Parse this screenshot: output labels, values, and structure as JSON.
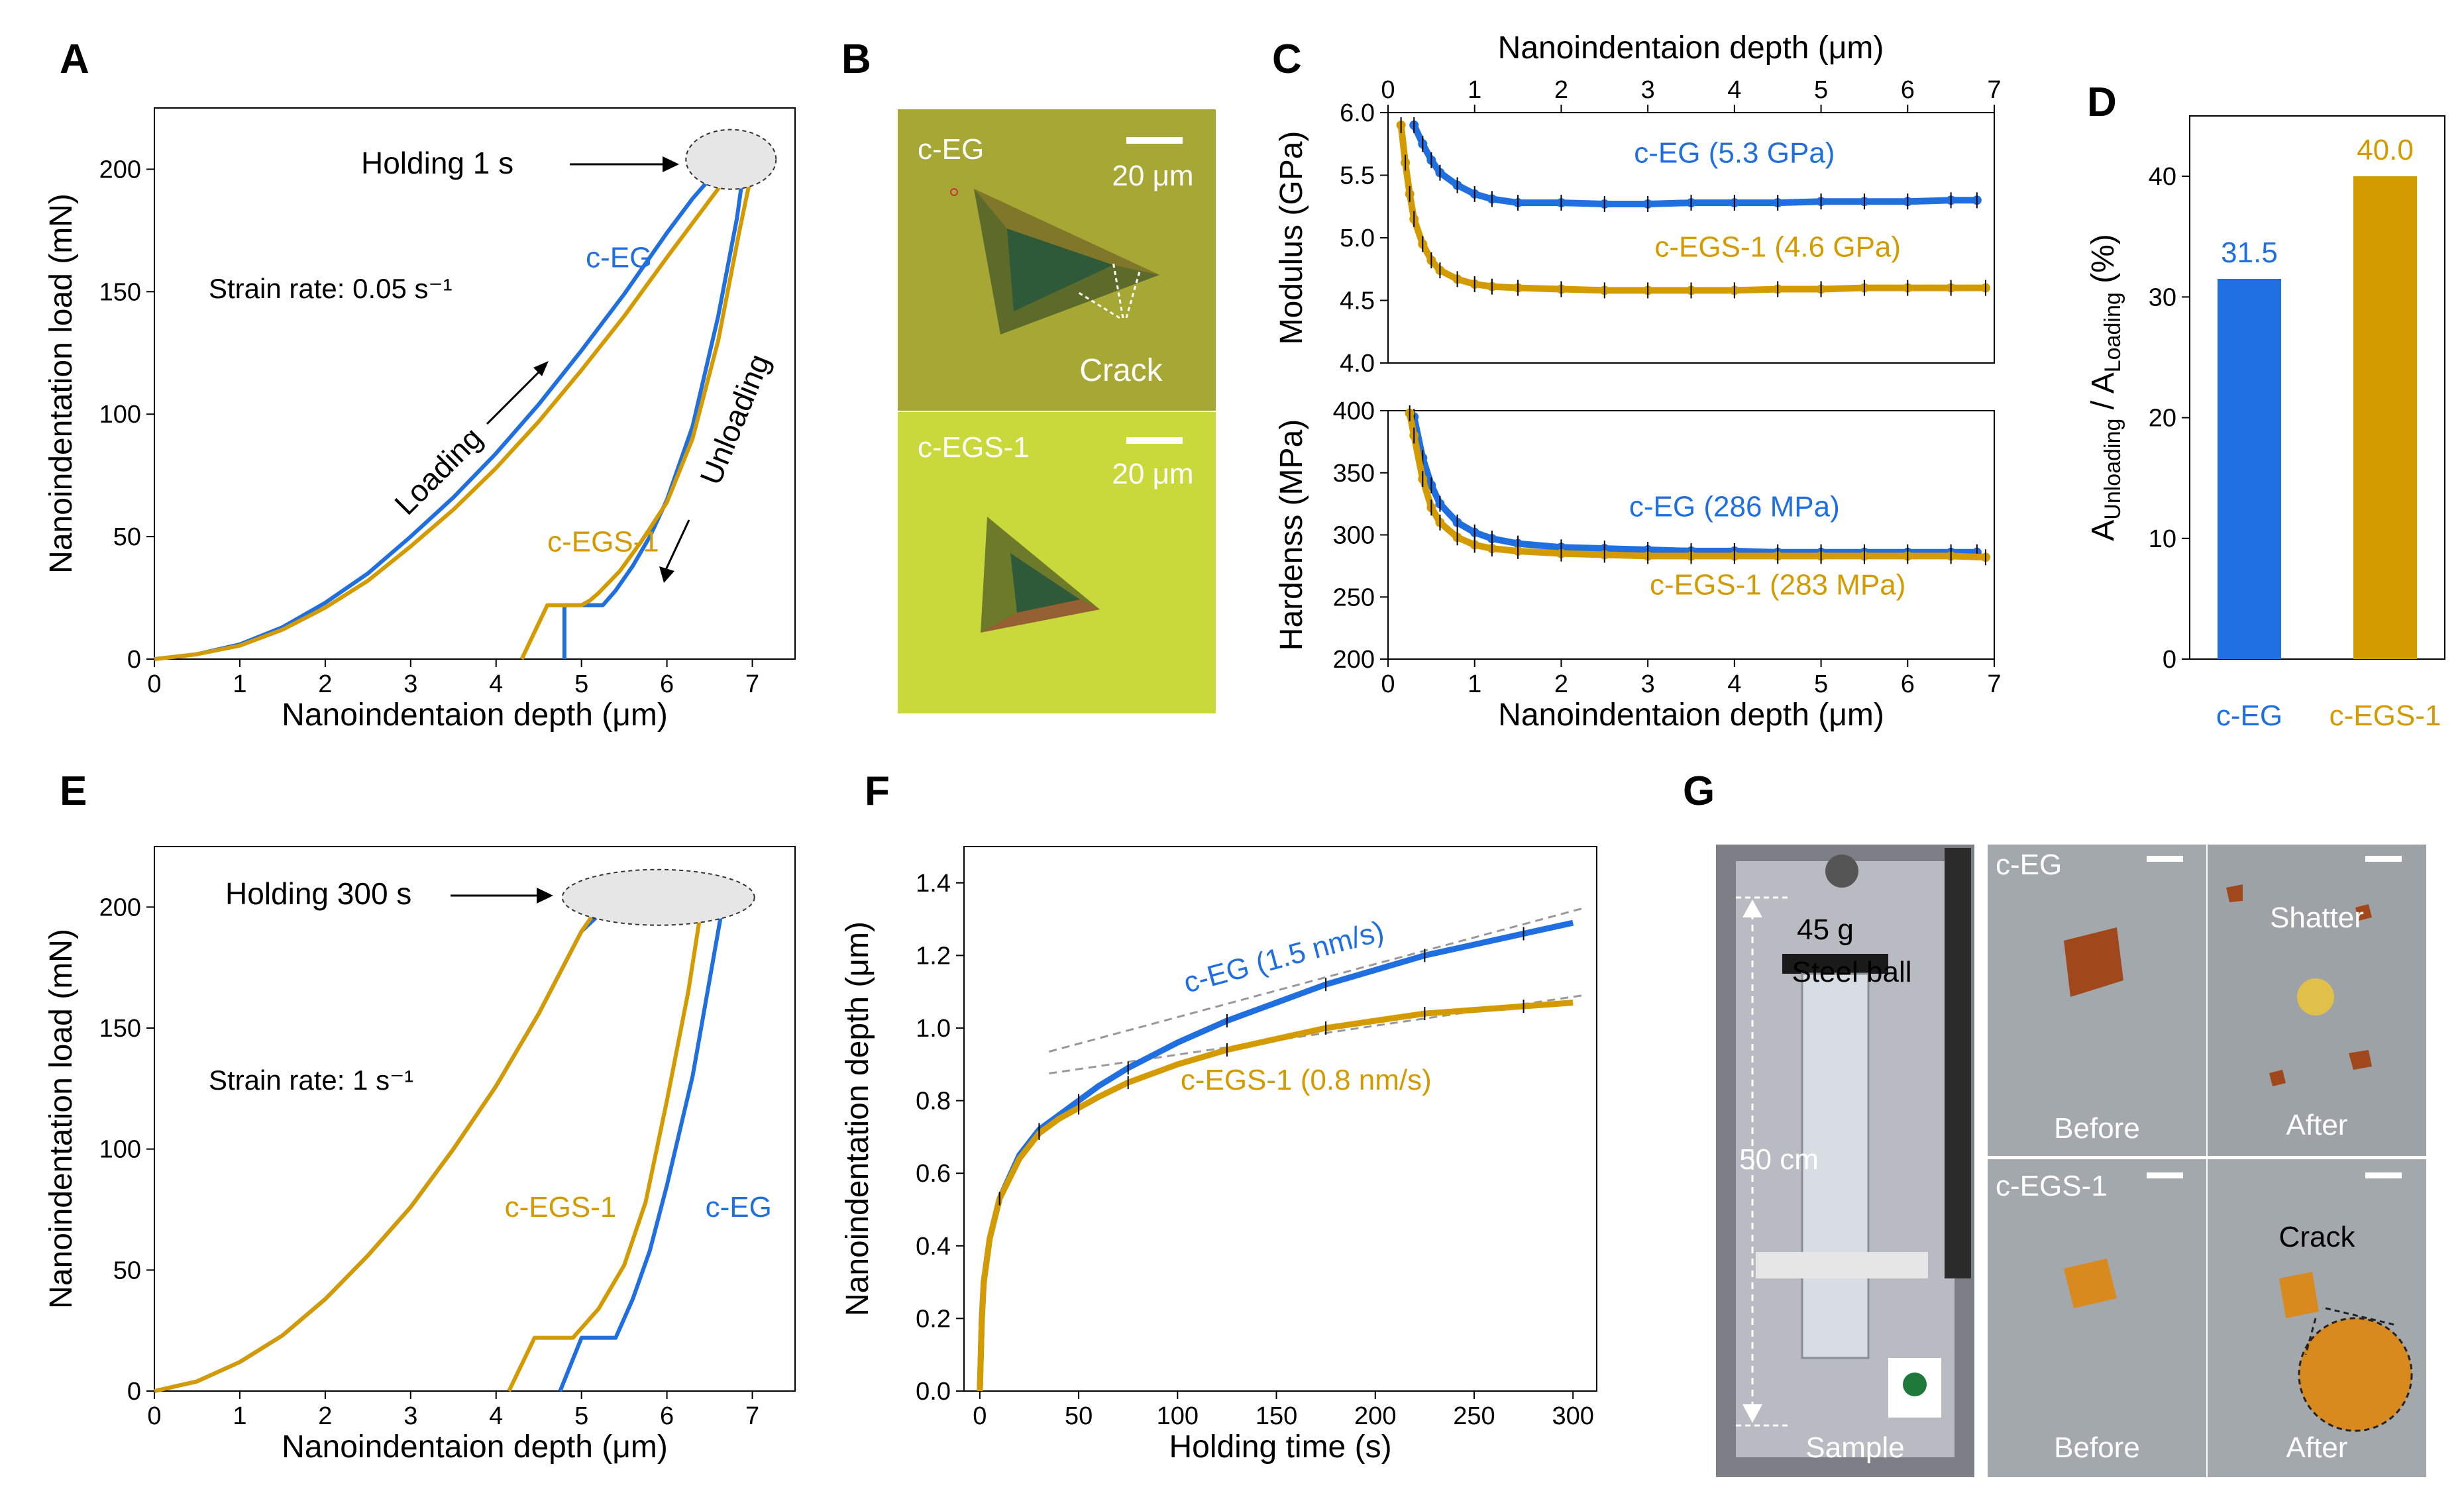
{
  "colors": {
    "ceg": "#1f6fe0",
    "cegs": "#d39b00",
    "axis": "#000000",
    "dash": "#999999"
  },
  "panel_letters": [
    "A",
    "B",
    "C",
    "D",
    "E",
    "F",
    "G"
  ],
  "chart_data": [
    {
      "id": "A",
      "type": "line",
      "xlabel": "Nanoindentaion depth (μm)",
      "ylabel": "Nanoindentation load (mN)",
      "xlim": [
        0,
        7.5
      ],
      "ylim": [
        0,
        225
      ],
      "xticks": [
        0,
        1,
        2,
        3,
        4,
        5,
        6,
        7
      ],
      "yticks": [
        0,
        50,
        100,
        150,
        200
      ],
      "annotations": {
        "holding": "Holding 1 s",
        "strain": "Strain rate: 0.05 s⁻¹",
        "loading": "Loading",
        "unloading": "Unloading"
      },
      "series": [
        {
          "name": "c-EG",
          "color_key": "ceg",
          "label_xy": [
            5.05,
            160
          ],
          "x": [
            0,
            0.5,
            1,
            1.5,
            2,
            2.5,
            3,
            3.5,
            4,
            4.5,
            5,
            5.5,
            6,
            6.3,
            6.6,
            6.75,
            6.9,
            6.82,
            6.6,
            6.3,
            6.0,
            5.8,
            5.6,
            5.4,
            5.3,
            5.25,
            4.8,
            4.8
          ],
          "y": [
            0,
            2,
            6,
            13,
            23,
            35,
            50,
            66,
            84,
            104,
            126,
            149,
            174,
            188,
            200,
            200,
            200,
            180,
            140,
            95,
            65,
            50,
            38,
            28,
            24,
            22,
            22,
            0
          ]
        },
        {
          "name": "c-EGS-1",
          "color_key": "cegs",
          "label_xy": [
            4.6,
            44
          ],
          "x": [
            0,
            0.5,
            1,
            1.5,
            2,
            2.5,
            3,
            3.5,
            4,
            4.5,
            5,
            5.5,
            6,
            6.3,
            6.6,
            6.75,
            6.85,
            7.0,
            6.85,
            6.6,
            6.3,
            6.0,
            5.7,
            5.45,
            5.2,
            5.1,
            5.0,
            4.6,
            4.6,
            4.3
          ],
          "y": [
            0,
            2,
            5.5,
            12,
            21,
            32,
            46,
            61,
            78,
            97,
            118,
            140,
            164,
            178,
            192,
            200,
            200,
            200,
            175,
            130,
            90,
            64,
            48,
            36,
            27,
            24,
            22,
            22,
            22,
            0
          ]
        }
      ]
    },
    {
      "id": "C-top",
      "type": "scatter",
      "xlabel": "Nanoindentaion depth (μm)",
      "ylabel": "Modulus (GPa)",
      "xlim": [
        0,
        7
      ],
      "ylim": [
        4.0,
        6.0
      ],
      "xticks": [
        0,
        1,
        2,
        3,
        4,
        5,
        6,
        7
      ],
      "yticks": [
        4.0,
        4.5,
        5.0,
        5.5,
        6.0
      ],
      "series": [
        {
          "name": "c-EG",
          "label": "c-EG (5.3 GPa)",
          "color_key": "ceg",
          "label_xy": [
            4.0,
            5.6
          ],
          "x": [
            0.3,
            0.4,
            0.5,
            0.6,
            0.8,
            1.0,
            1.2,
            1.5,
            2.0,
            2.5,
            3.0,
            3.5,
            4.0,
            4.5,
            5.0,
            5.5,
            6.0,
            6.5,
            6.8
          ],
          "y": [
            5.9,
            5.75,
            5.62,
            5.52,
            5.42,
            5.35,
            5.31,
            5.28,
            5.28,
            5.27,
            5.27,
            5.28,
            5.28,
            5.28,
            5.29,
            5.29,
            5.29,
            5.3,
            5.3
          ]
        },
        {
          "name": "c-EGS-1",
          "label": "c-EGS-1 (4.6 GPa)",
          "color_key": "cegs",
          "label_xy": [
            4.5,
            4.85
          ],
          "x": [
            0.15,
            0.2,
            0.25,
            0.3,
            0.4,
            0.5,
            0.6,
            0.8,
            1.0,
            1.2,
            1.5,
            2.0,
            2.5,
            3.0,
            3.5,
            4.0,
            4.5,
            5.0,
            5.5,
            6.0,
            6.5,
            6.9
          ],
          "y": [
            5.9,
            5.6,
            5.35,
            5.15,
            4.95,
            4.82,
            4.74,
            4.67,
            4.63,
            4.61,
            4.6,
            4.59,
            4.58,
            4.58,
            4.58,
            4.58,
            4.59,
            4.59,
            4.6,
            4.6,
            4.6,
            4.6
          ]
        }
      ]
    },
    {
      "id": "C-bottom",
      "type": "scatter",
      "xlabel": "Nanoindentaion depth (μm)",
      "ylabel": "Hardenss (MPa)",
      "title": "Nanoindentaion depth (μm)",
      "xlim": [
        0,
        7
      ],
      "ylim": [
        200,
        400
      ],
      "xticks": [
        0,
        1,
        2,
        3,
        4,
        5,
        6,
        7
      ],
      "yticks": [
        200,
        250,
        300,
        350,
        400
      ],
      "series": [
        {
          "name": "c-EG",
          "label": "c-EG (286 MPa)",
          "color_key": "ceg",
          "label_xy": [
            4.0,
            315
          ],
          "x": [
            0.3,
            0.4,
            0.5,
            0.6,
            0.8,
            1.0,
            1.2,
            1.5,
            2.0,
            2.5,
            3.0,
            3.5,
            4.0,
            4.5,
            5.0,
            5.5,
            6.0,
            6.5,
            6.8
          ],
          "y": [
            395,
            362,
            340,
            325,
            310,
            302,
            297,
            293,
            290,
            289,
            288,
            287,
            287,
            286,
            286,
            286,
            286,
            286,
            286
          ]
        },
        {
          "name": "c-EGS-1",
          "label": "c-EGS-1 (283 MPa)",
          "color_key": "cegs",
          "label_xy": [
            4.5,
            252
          ],
          "x": [
            0.25,
            0.3,
            0.4,
            0.5,
            0.6,
            0.8,
            1.0,
            1.2,
            1.5,
            2.0,
            2.5,
            3.0,
            3.5,
            4.0,
            4.5,
            5.0,
            5.5,
            6.0,
            6.5,
            6.9
          ],
          "y": [
            398,
            380,
            345,
            322,
            310,
            298,
            292,
            289,
            287,
            285,
            284,
            283,
            283,
            283,
            283,
            283,
            283,
            283,
            283,
            282
          ]
        }
      ]
    },
    {
      "id": "D",
      "type": "bar",
      "ylabel": "A_Unloading / A_Loading (%)",
      "ylim": [
        0,
        45
      ],
      "yticks": [
        0,
        10,
        20,
        30,
        40
      ],
      "categories": [
        "c-EG",
        "c-EGS-1"
      ],
      "values": [
        31.5,
        40.0
      ],
      "value_labels": [
        "31.5",
        "40.0"
      ],
      "ylabel_parts": {
        "a1": "A",
        "sub1": "Unloading",
        "mid": " / A",
        "sub2": "Loading",
        "tail": " (%)"
      }
    },
    {
      "id": "E",
      "type": "line",
      "xlabel": "Nanoindentaion depth (μm)",
      "ylabel": "Nanoindentation load (mN)",
      "xlim": [
        0,
        7.5
      ],
      "ylim": [
        0,
        225
      ],
      "xticks": [
        0,
        1,
        2,
        3,
        4,
        5,
        6,
        7
      ],
      "yticks": [
        0,
        50,
        100,
        150,
        200
      ],
      "annotations": {
        "holding": "Holding 300 s",
        "strain": "Strain rate: 1 s⁻¹"
      },
      "series": [
        {
          "name": "c-EG",
          "color_key": "ceg",
          "label_xy": [
            6.45,
            72
          ],
          "x": [
            0,
            0.5,
            1,
            1.5,
            2,
            2.5,
            3,
            3.5,
            4,
            4.5,
            5.0,
            5.3,
            5.5,
            6.6,
            6.65,
            6.5,
            6.3,
            6.0,
            5.8,
            5.6,
            5.45,
            5.4,
            5.0,
            4.75
          ],
          "y": [
            0,
            4,
            12,
            23,
            38,
            56,
            76,
            100,
            126,
            156,
            190,
            200,
            200,
            202,
            200,
            170,
            130,
            85,
            58,
            38,
            26,
            22,
            22,
            0
          ]
        },
        {
          "name": "c-EGS-1",
          "color_key": "cegs",
          "label_xy": [
            4.1,
            72
          ],
          "x": [
            0,
            0.5,
            1,
            1.5,
            2,
            2.5,
            3,
            3.5,
            4,
            4.5,
            5.0,
            5.2,
            5.3,
            6.35,
            6.4,
            6.25,
            6.0,
            5.75,
            5.5,
            5.2,
            4.95,
            4.9,
            4.45,
            4.15
          ],
          "y": [
            0,
            4,
            12,
            23,
            38,
            56,
            76,
            100,
            126,
            156,
            190,
            200,
            200,
            201,
            199,
            165,
            120,
            78,
            52,
            34,
            24,
            22,
            22,
            0
          ]
        }
      ]
    },
    {
      "id": "F",
      "type": "line",
      "xlabel": "Holding time (s)",
      "ylabel": "Nanoindentation depth (μm)",
      "xlim": [
        -8,
        312
      ],
      "ylim": [
        0,
        1.5
      ],
      "xticks": [
        0,
        50,
        100,
        150,
        200,
        250,
        300
      ],
      "yticks": [
        0.0,
        0.2,
        0.4,
        0.6,
        0.8,
        1.0,
        1.2,
        1.4
      ],
      "series": [
        {
          "name": "c-EG",
          "label": "c-EG (1.5 nm/s)",
          "color_key": "ceg",
          "label_xy": [
            155,
            1.17
          ],
          "x": [
            0,
            1,
            2,
            5,
            10,
            20,
            30,
            40,
            50,
            60,
            75,
            100,
            125,
            150,
            175,
            200,
            225,
            250,
            275,
            300
          ],
          "y": [
            0.0,
            0.2,
            0.3,
            0.42,
            0.53,
            0.65,
            0.72,
            0.76,
            0.8,
            0.84,
            0.89,
            0.96,
            1.02,
            1.07,
            1.12,
            1.16,
            1.2,
            1.23,
            1.26,
            1.29
          ]
        },
        {
          "name": "c-EGS-1",
          "label": "c-EGS-1 (0.8 nm/s)",
          "color_key": "cegs",
          "label_xy": [
            165,
            0.83
          ],
          "x": [
            0,
            1,
            2,
            5,
            10,
            20,
            30,
            40,
            50,
            60,
            75,
            100,
            125,
            150,
            175,
            200,
            225,
            250,
            275,
            300
          ],
          "y": [
            0.0,
            0.2,
            0.3,
            0.42,
            0.53,
            0.64,
            0.71,
            0.75,
            0.78,
            0.81,
            0.85,
            0.9,
            0.94,
            0.97,
            1.0,
            1.02,
            1.04,
            1.05,
            1.06,
            1.07
          ]
        }
      ],
      "fit_lines": [
        {
          "x": [
            35,
            305
          ],
          "y": [
            0.935,
            1.33
          ]
        },
        {
          "x": [
            35,
            305
          ],
          "y": [
            0.875,
            1.09
          ]
        }
      ]
    }
  ],
  "micrographs": {
    "top_label": "c-EG",
    "bottom_label": "c-EGS-1",
    "scale_top": "20 μm",
    "scale_bottom": "20 μm",
    "crack": "Crack"
  },
  "drop_test": {
    "mass": "45 g",
    "ball": "Steel ball",
    "height": "50 cm",
    "sample": "Sample",
    "ceg": "c-EG",
    "cegs": "c-EGS-1",
    "before": "Before",
    "after": "After",
    "shatter": "Shatter",
    "crack": "Crack"
  }
}
